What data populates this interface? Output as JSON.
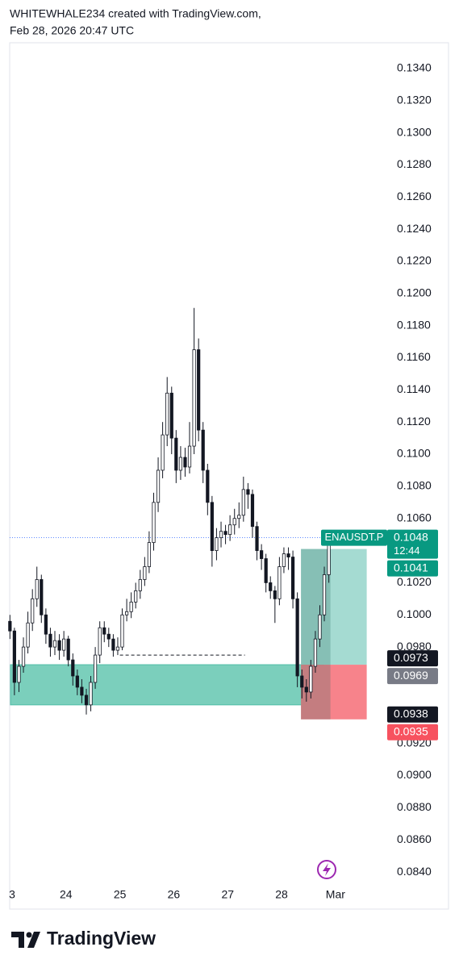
{
  "header": {
    "author_line": "WHITEWHALE234 created with TradingView.com,",
    "timestamp": "Feb 28, 2026 20:47 UTC"
  },
  "chart_data": {
    "type": "candlestick",
    "symbol": "ENAUSDT.P",
    "x": [
      22.96,
      23.043,
      23.127,
      23.21,
      23.293,
      23.377,
      23.46,
      23.543,
      23.627,
      23.71,
      23.793,
      23.877,
      23.96,
      24.043,
      24.127,
      24.21,
      24.293,
      24.377,
      24.46,
      24.543,
      24.627,
      24.71,
      24.793,
      24.877,
      24.96,
      25.043,
      25.127,
      25.21,
      25.293,
      25.377,
      25.46,
      25.543,
      25.627,
      25.71,
      25.793,
      25.877,
      25.96,
      26.043,
      26.127,
      26.21,
      26.293,
      26.377,
      26.46,
      26.543,
      26.627,
      26.71,
      26.793,
      26.877,
      26.96,
      27.043,
      27.127,
      27.21,
      27.293,
      27.377,
      27.46,
      27.543,
      27.627,
      27.71,
      27.793,
      27.877,
      27.96,
      28.043,
      28.127,
      28.21,
      28.293,
      28.377,
      28.46,
      28.543,
      28.627,
      28.71,
      28.793,
      28.877
    ],
    "open": [
      0.0996,
      0.099,
      0.0958,
      0.0968,
      0.098,
      0.0995,
      0.101,
      0.1022,
      0.1,
      0.0988,
      0.098,
      0.0984,
      0.0978,
      0.0985,
      0.0972,
      0.0962,
      0.0955,
      0.095,
      0.0944,
      0.0958,
      0.0975,
      0.0992,
      0.0988,
      0.0985,
      0.0978,
      0.098,
      0.1,
      0.1002,
      0.1008,
      0.1015,
      0.1022,
      0.103,
      0.1045,
      0.107,
      0.109,
      0.1112,
      0.1138,
      0.111,
      0.109,
      0.1098,
      0.1092,
      0.1105,
      0.1165,
      0.1115,
      0.109,
      0.107,
      0.104,
      0.1048,
      0.1052,
      0.105,
      0.1056,
      0.106,
      0.1062,
      0.1078,
      0.1075,
      0.1055,
      0.104,
      0.1035,
      0.102,
      0.1015,
      0.101,
      0.103,
      0.1038,
      0.1036,
      0.101,
      0.0962,
      0.0955,
      0.0952,
      0.0968,
      0.0985,
      0.1,
      0.1025
    ],
    "high": [
      0.1,
      0.0992,
      0.0972,
      0.0986,
      0.1002,
      0.1016,
      0.103,
      0.1025,
      0.1004,
      0.0992,
      0.099,
      0.0988,
      0.099,
      0.0987,
      0.0976,
      0.0966,
      0.096,
      0.0954,
      0.0962,
      0.098,
      0.0996,
      0.0996,
      0.0992,
      0.0988,
      0.0986,
      0.1004,
      0.101,
      0.1014,
      0.102,
      0.1028,
      0.1036,
      0.1052,
      0.1076,
      0.1098,
      0.112,
      0.1148,
      0.1142,
      0.1115,
      0.1105,
      0.1104,
      0.112,
      0.1191,
      0.1172,
      0.112,
      0.1094,
      0.1074,
      0.1054,
      0.1058,
      0.1056,
      0.1062,
      0.1066,
      0.107,
      0.1086,
      0.1082,
      0.1078,
      0.1058,
      0.1044,
      0.1038,
      0.1024,
      0.1018,
      0.1036,
      0.1042,
      0.1042,
      0.104,
      0.1014,
      0.0966,
      0.096,
      0.0972,
      0.099,
      0.1006,
      0.103,
      0.1052
    ],
    "low": [
      0.0985,
      0.095,
      0.0952,
      0.0964,
      0.0976,
      0.099,
      0.1005,
      0.0995,
      0.0982,
      0.0974,
      0.0975,
      0.0972,
      0.0974,
      0.0968,
      0.0956,
      0.095,
      0.0945,
      0.0938,
      0.094,
      0.0954,
      0.097,
      0.0983,
      0.098,
      0.0974,
      0.0975,
      0.0978,
      0.0996,
      0.0998,
      0.1004,
      0.101,
      0.1018,
      0.1026,
      0.104,
      0.1064,
      0.1085,
      0.1105,
      0.11,
      0.1082,
      0.1084,
      0.1086,
      0.1088,
      0.11,
      0.1108,
      0.1082,
      0.1062,
      0.103,
      0.1034,
      0.1042,
      0.1044,
      0.1046,
      0.105,
      0.1054,
      0.1058,
      0.1066,
      0.1048,
      0.1034,
      0.1028,
      0.1014,
      0.101,
      0.0995,
      0.1006,
      0.1026,
      0.1028,
      0.1004,
      0.0955,
      0.0948,
      0.0946,
      0.0948,
      0.0964,
      0.098,
      0.0996,
      0.102
    ],
    "close": [
      0.099,
      0.0958,
      0.0968,
      0.098,
      0.0995,
      0.101,
      0.1022,
      0.1,
      0.0988,
      0.098,
      0.0984,
      0.0978,
      0.0985,
      0.0972,
      0.0962,
      0.0955,
      0.095,
      0.0944,
      0.0958,
      0.0975,
      0.0992,
      0.0988,
      0.0985,
      0.0978,
      0.098,
      0.1,
      0.1002,
      0.1008,
      0.1015,
      0.1022,
      0.103,
      0.1045,
      0.107,
      0.109,
      0.1112,
      0.1138,
      0.111,
      0.109,
      0.1098,
      0.1092,
      0.1105,
      0.1165,
      0.1115,
      0.109,
      0.107,
      0.104,
      0.1048,
      0.1052,
      0.105,
      0.1056,
      0.106,
      0.1062,
      0.1078,
      0.1075,
      0.1055,
      0.104,
      0.1035,
      0.102,
      0.1015,
      0.101,
      0.103,
      0.1038,
      0.1036,
      0.101,
      0.0962,
      0.0955,
      0.0952,
      0.0968,
      0.0985,
      0.1,
      0.1025,
      0.1048
    ],
    "up_color": "#ffffff",
    "down_color": "#131722",
    "wick_color": "#131722",
    "xlim": [
      22.955,
      29.93
    ],
    "xticks": [
      {
        "value": 23,
        "label": "3"
      },
      24,
      25,
      26,
      27,
      28,
      {
        "value": 29,
        "label": "Mar"
      }
    ],
    "ylim": [
      0.0833,
      0.1356
    ],
    "yticks": [
      {
        "value": 0.134,
        "label": "0.1340"
      },
      {
        "value": 0.132,
        "label": "0.1320"
      },
      {
        "value": 0.13,
        "label": "0.1300"
      },
      {
        "value": 0.128,
        "label": "0.1280"
      },
      {
        "value": 0.126,
        "label": "0.1260"
      },
      {
        "value": 0.124,
        "label": "0.1240"
      },
      {
        "value": 0.122,
        "label": "0.1220"
      },
      {
        "value": 0.12,
        "label": "0.1200"
      },
      {
        "value": 0.118,
        "label": "0.1180"
      },
      {
        "value": 0.116,
        "label": "0.1160"
      },
      {
        "value": 0.114,
        "label": "0.1140"
      },
      {
        "value": 0.112,
        "label": "0.1120"
      },
      {
        "value": 0.11,
        "label": "0.1100"
      },
      {
        "value": 0.108,
        "label": "0.1080"
      },
      {
        "value": 0.106,
        "label": "0.1060"
      },
      {
        "value": 0.102,
        "label": "0.1020"
      },
      {
        "value": 0.1,
        "label": "0.1000"
      },
      {
        "value": 0.098,
        "label": "0.0980"
      },
      {
        "value": 0.092,
        "label": "0.0920"
      },
      {
        "value": 0.09,
        "label": "0.0900"
      },
      {
        "value": 0.088,
        "label": "0.0880"
      },
      {
        "value": 0.086,
        "label": "0.0860"
      },
      {
        "value": 0.084,
        "label": "0.0840"
      }
    ],
    "grid": false,
    "zone": {
      "x": [
        22.97,
        28.78
      ],
      "y": [
        0.0944,
        0.0969
      ],
      "color": "#4fbfa6"
    },
    "dashed_level": {
      "x": [
        25.0,
        27.32
      ],
      "y": 0.0975
    },
    "position": {
      "x": [
        28.36,
        29.58
      ],
      "entry": 0.0969,
      "target": 0.1041,
      "stop": 0.0935,
      "profit_color": "#a5dbd2",
      "loss_color": "#f7838b"
    },
    "price_tags": [
      {
        "value": 0.1048,
        "countdown": "12:44",
        "color": "#089981"
      },
      {
        "value": 0.1041,
        "color": "#089981"
      },
      {
        "value": 0.0973,
        "color": "#131722"
      },
      {
        "value": 0.0969,
        "color": "#787b86"
      },
      {
        "value": 0.0938,
        "color": "#131722"
      },
      {
        "value": 0.0935,
        "color": "#f7525f"
      }
    ]
  },
  "footer": {
    "brand": "TradingView"
  }
}
